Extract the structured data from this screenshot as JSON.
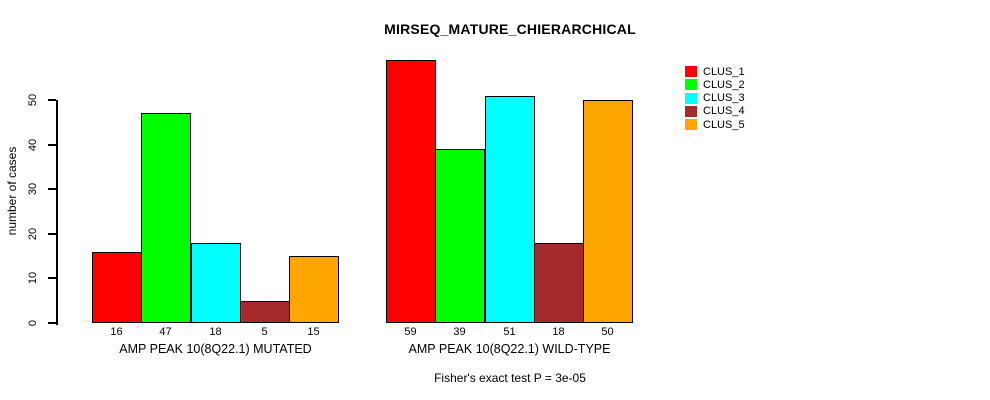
{
  "chart_data": {
    "type": "bar",
    "title": "MIRSEQ_MATURE_CHIERARCHICAL",
    "ylabel": "number of cases",
    "xlabel": "",
    "yticks": [
      0,
      10,
      20,
      30,
      40,
      50
    ],
    "ylim": [
      0,
      59
    ],
    "grid": false,
    "legend_position": "right",
    "bar_border_color": "#000000",
    "series": [
      {
        "name": "CLUS_1",
        "color": "#FF0000",
        "values": [
          16,
          59
        ]
      },
      {
        "name": "CLUS_2",
        "color": "#00FF00",
        "values": [
          47,
          39
        ]
      },
      {
        "name": "CLUS_3",
        "color": "#00FFFF",
        "values": [
          18,
          51
        ]
      },
      {
        "name": "CLUS_4",
        "color": "#A52A2A",
        "values": [
          5,
          18
        ]
      },
      {
        "name": "CLUS_5",
        "color": "#FFA500",
        "values": [
          15,
          50
        ]
      }
    ],
    "categories": [
      "AMP PEAK 10(8Q22.1) MUTATED",
      "AMP PEAK 10(8Q22.1) WILD-TYPE"
    ],
    "groups": [
      {
        "label": "AMP PEAK 10(8Q22.1) MUTATED",
        "values": [
          16,
          47,
          18,
          5,
          15
        ]
      },
      {
        "label": "AMP PEAK 10(8Q22.1) WILD-TYPE",
        "values": [
          59,
          39,
          51,
          18,
          50
        ]
      }
    ],
    "annotation": "Fisher's exact test P = 3e-05"
  }
}
